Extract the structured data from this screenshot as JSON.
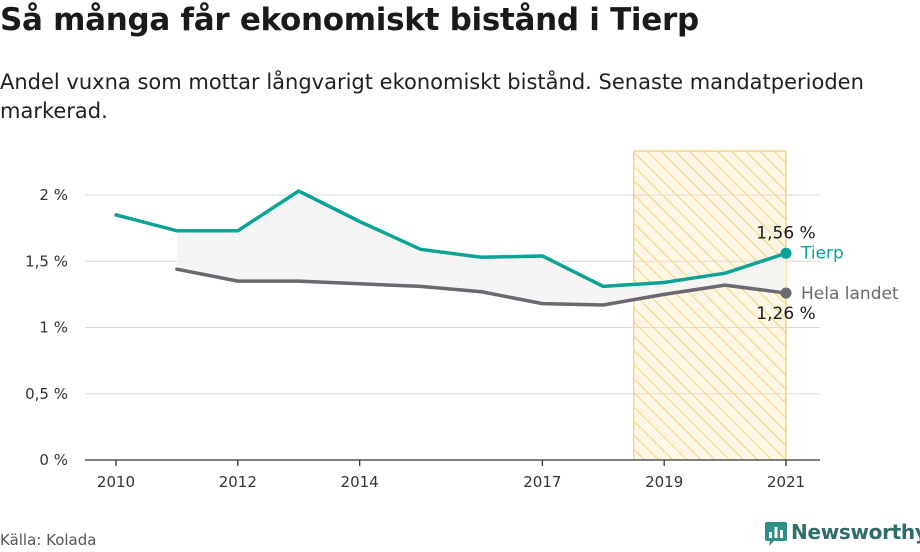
{
  "header": {
    "title": "Så många får ekonomiskt bistånd i Tierp",
    "subtitle": "Andel vuxna som mottar långvarigt ekonomiskt bistånd. Senaste mandatperioden markerad."
  },
  "footer": {
    "source": "Källa: Kolada",
    "brand": "Newsworthy"
  },
  "colors": {
    "tierp": "#0aa396",
    "hela_landet": "#6b6870",
    "highlight_fill": "#fbe7b6",
    "highlight_stroke": "#f5cf6f",
    "grid": "#d9d9d9",
    "band": "#f4f4f4",
    "brand_icon": "#2e8f86"
  },
  "chart_data": {
    "type": "line",
    "x": [
      2010,
      2011,
      2012,
      2013,
      2014,
      2015,
      2016,
      2017,
      2018,
      2019,
      2020,
      2021
    ],
    "xlim": [
      2009.4,
      2021.55
    ],
    "ylim": [
      0,
      2.5
    ],
    "y_ticks": [
      0,
      0.5,
      1,
      1.5,
      2
    ],
    "y_tick_labels": [
      "0 %",
      "0,5 %",
      "1 %",
      "1,5 %",
      "2 %"
    ],
    "x_ticks": [
      2010,
      2012,
      2014,
      2017,
      2019,
      2021
    ],
    "x_tick_labels": [
      "2010",
      "2012",
      "2014",
      "2017",
      "2019",
      "2021"
    ],
    "grid": true,
    "highlight_period": [
      2018.5,
      2021
    ],
    "series": [
      {
        "name": "Tierp",
        "values": [
          1.85,
          1.73,
          1.73,
          2.03,
          1.8,
          1.59,
          1.53,
          1.54,
          1.31,
          1.34,
          1.41,
          1.56
        ],
        "end_label": "1,56 %",
        "color": "#0aa396"
      },
      {
        "name": "Hela landet",
        "values": [
          null,
          1.44,
          1.35,
          1.35,
          1.33,
          1.31,
          1.27,
          1.18,
          1.17,
          1.25,
          1.32,
          1.26
        ],
        "end_label": "1,26 %",
        "color": "#6b6870"
      }
    ]
  }
}
